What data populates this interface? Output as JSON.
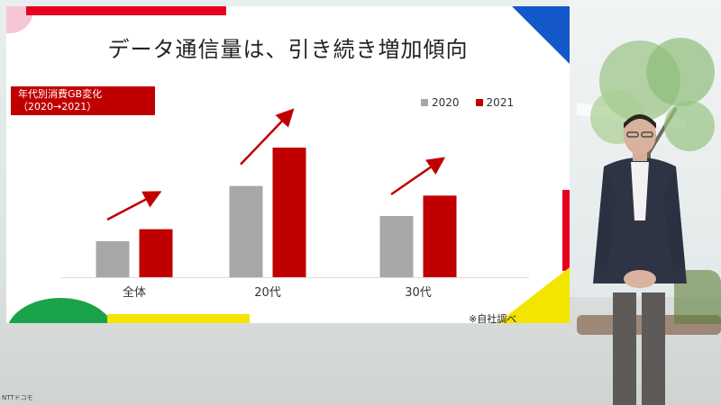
{
  "slide": {
    "title": "データ通信量は、引き続き増加傾向",
    "label_line1": "年代別消費GB変化",
    "label_line2": "（2020→2021）",
    "note": "※自社調べ"
  },
  "colors": {
    "series_2020": "#a8a6a6",
    "series_2021": "#c00000",
    "arrow": "#c00000"
  },
  "chart_data": {
    "type": "bar",
    "categories": [
      "全体",
      "20代",
      "30代"
    ],
    "series": [
      {
        "name": "2020",
        "values": [
          3.0,
          7.6,
          5.1
        ]
      },
      {
        "name": "2021",
        "values": [
          4.0,
          10.8,
          6.8
        ]
      }
    ],
    "legend": "top-right",
    "trend_arrows": true,
    "grid": false,
    "ylim": [
      0,
      12
    ]
  },
  "watermark": "NTTドコモ"
}
